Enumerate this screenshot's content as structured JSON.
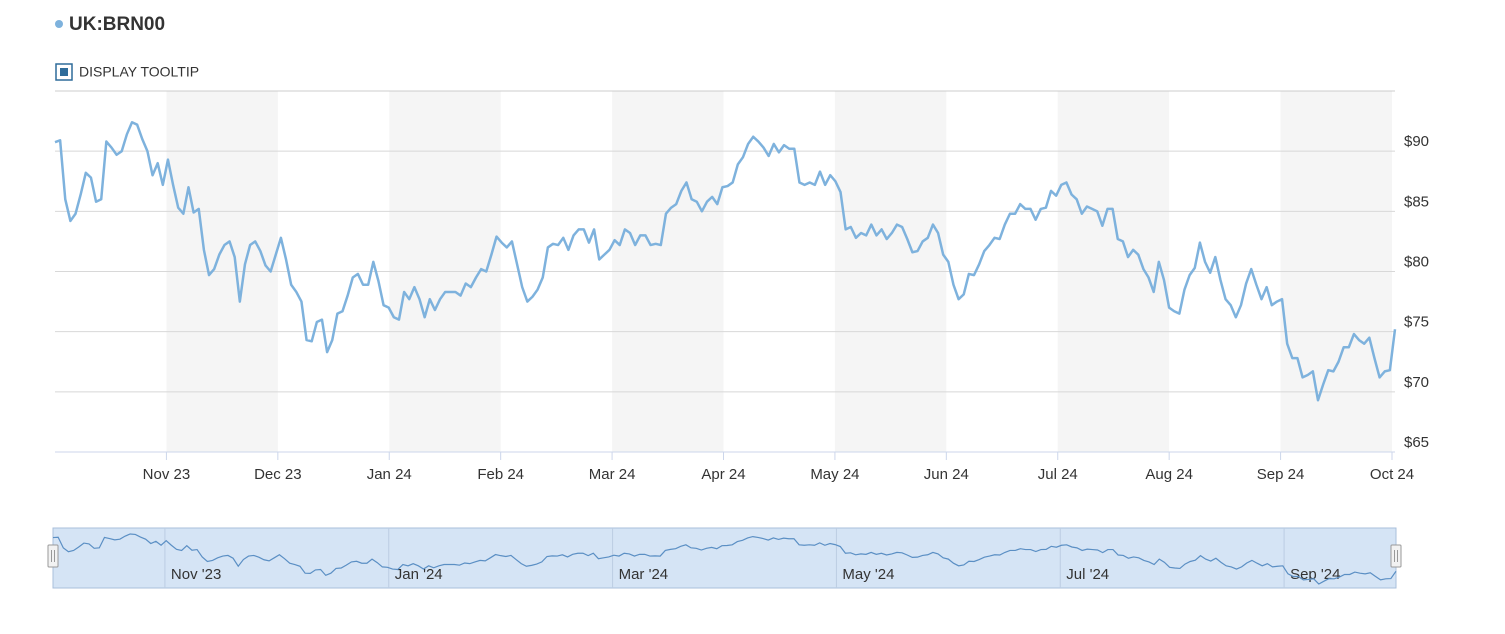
{
  "chart_data": {
    "type": "line",
    "title": "UK:BRN00",
    "tooltip_toggle": "DISPLAY TOOLTIP",
    "xlim": [
      "2023-10",
      "2024-10"
    ],
    "xticks": [
      {
        "value": "2023-11",
        "label": "Nov 23"
      },
      {
        "value": "2023-12",
        "label": "Dec 23"
      },
      {
        "value": "2024-01",
        "label": "Jan 24"
      },
      {
        "value": "2024-02",
        "label": "Feb 24"
      },
      {
        "value": "2024-03",
        "label": "Mar 24"
      },
      {
        "value": "2024-04",
        "label": "Apr 24"
      },
      {
        "value": "2024-05",
        "label": "May 24"
      },
      {
        "value": "2024-06",
        "label": "Jun 24"
      },
      {
        "value": "2024-07",
        "label": "Jul 24"
      },
      {
        "value": "2024-08",
        "label": "Aug 24"
      },
      {
        "value": "2024-09",
        "label": "Sep 24"
      },
      {
        "value": "2024-10",
        "label": "Oct 24"
      }
    ],
    "ylim": [
      65,
      95
    ],
    "yticks": [
      {
        "value": 65,
        "label": "$65"
      },
      {
        "value": 70,
        "label": "$70"
      },
      {
        "value": 75,
        "label": "$75"
      },
      {
        "value": 80,
        "label": "$80"
      },
      {
        "value": 85,
        "label": "$85"
      },
      {
        "value": 90,
        "label": "$90"
      }
    ],
    "grid": true,
    "series": [
      {
        "name": "UK:BRN00",
        "color": "#7eb2dd",
        "values": [
          90.75,
          90.9,
          86,
          84.2,
          84.8,
          86.4,
          88.2,
          87.8,
          85.8,
          86,
          90.8,
          90.3,
          89.7,
          90,
          91.4,
          92.4,
          92.2,
          91,
          90,
          88,
          89,
          87.2,
          89.3,
          87.2,
          85.3,
          84.8,
          87,
          84.9,
          85.2,
          81.8,
          79.7,
          80.2,
          81.4,
          82.2,
          82.5,
          81.2,
          77.5,
          80.6,
          82.2,
          82.5,
          81.7,
          80.5,
          80,
          81.4,
          82.8,
          81,
          78.9,
          78.3,
          77.5,
          74.3,
          74.2,
          75.8,
          76,
          73.3,
          74.3,
          76.5,
          76.7,
          78,
          79.5,
          79.8,
          78.9,
          78.9,
          80.8,
          79.2,
          77.2,
          77,
          76.2,
          76,
          78.3,
          77.7,
          78.7,
          77.7,
          76.2,
          77.7,
          76.8,
          77.7,
          78.3,
          78.3,
          78.3,
          78,
          79,
          78.7,
          79.5,
          80.2,
          80,
          81.4,
          82.9,
          82.4,
          82,
          82.5,
          80.6,
          78.7,
          77.5,
          77.9,
          78.5,
          79.5,
          82,
          82.3,
          82.2,
          82.8,
          81.8,
          83,
          83.5,
          83.5,
          82.4,
          83.5,
          81,
          81.4,
          81.8,
          82.6,
          82.2,
          83.5,
          83.2,
          82.2,
          83,
          83,
          82.2,
          82.3,
          82.2,
          84.8,
          85.3,
          85.6,
          86.7,
          87.4,
          86,
          85.8,
          85,
          85.8,
          86.2,
          85.6,
          87,
          87.1,
          87.4,
          88.9,
          89.5,
          90.6,
          91.2,
          90.8,
          90.3,
          89.6,
          90.6,
          89.9,
          90.5,
          90.2,
          90.2,
          87.4,
          87.2,
          87.4,
          87.2,
          88.3,
          87.2,
          88,
          87.5,
          86.6,
          83.5,
          83.7,
          82.8,
          83.2,
          83,
          83.9,
          83,
          83.5,
          82.7,
          83.2,
          83.9,
          83.7,
          82.7,
          81.6,
          81.7,
          82.5,
          82.8,
          83.9,
          83.2,
          81.4,
          80.8,
          78.9,
          77.7,
          78.1,
          79.8,
          79.7,
          80.6,
          81.7,
          82.2,
          82.8,
          82.7,
          83.9,
          84.8,
          84.8,
          85.6,
          85.2,
          85.2,
          84.3,
          85.2,
          85.3,
          86.7,
          86.3,
          87.2,
          87.4,
          86.4,
          86,
          84.8,
          85.4,
          85.2,
          85,
          83.8,
          85.2,
          85.2,
          82.7,
          82.5,
          81.2,
          81.8,
          81.4,
          80.2,
          79.5,
          78.3,
          80.8,
          79.3,
          77,
          76.7,
          76.5,
          78.5,
          79.7,
          80.3,
          82.4,
          80.8,
          79.9,
          81.2,
          79.3,
          77.7,
          77.2,
          76.2,
          77.2,
          79,
          80.2,
          78.9,
          77.7,
          78.7,
          77.2,
          77.5,
          77.7,
          74,
          72.8,
          72.8,
          71.2,
          71.4,
          71.7,
          69.3,
          70.6,
          71.8,
          71.7,
          72.5,
          73.7,
          73.7,
          74.8,
          74.3,
          74,
          74.5,
          72.8,
          71.2,
          71.7,
          71.8,
          75.2
        ]
      }
    ],
    "navigator": {
      "ticks": [
        {
          "value": "2023-11",
          "label": "Nov '23"
        },
        {
          "value": "2024-01",
          "label": "Jan '24"
        },
        {
          "value": "2024-03",
          "label": "Mar '24"
        },
        {
          "value": "2024-05",
          "label": "May '24"
        },
        {
          "value": "2024-07",
          "label": "Jul '24"
        },
        {
          "value": "2024-09",
          "label": "Sep '24"
        }
      ]
    }
  }
}
